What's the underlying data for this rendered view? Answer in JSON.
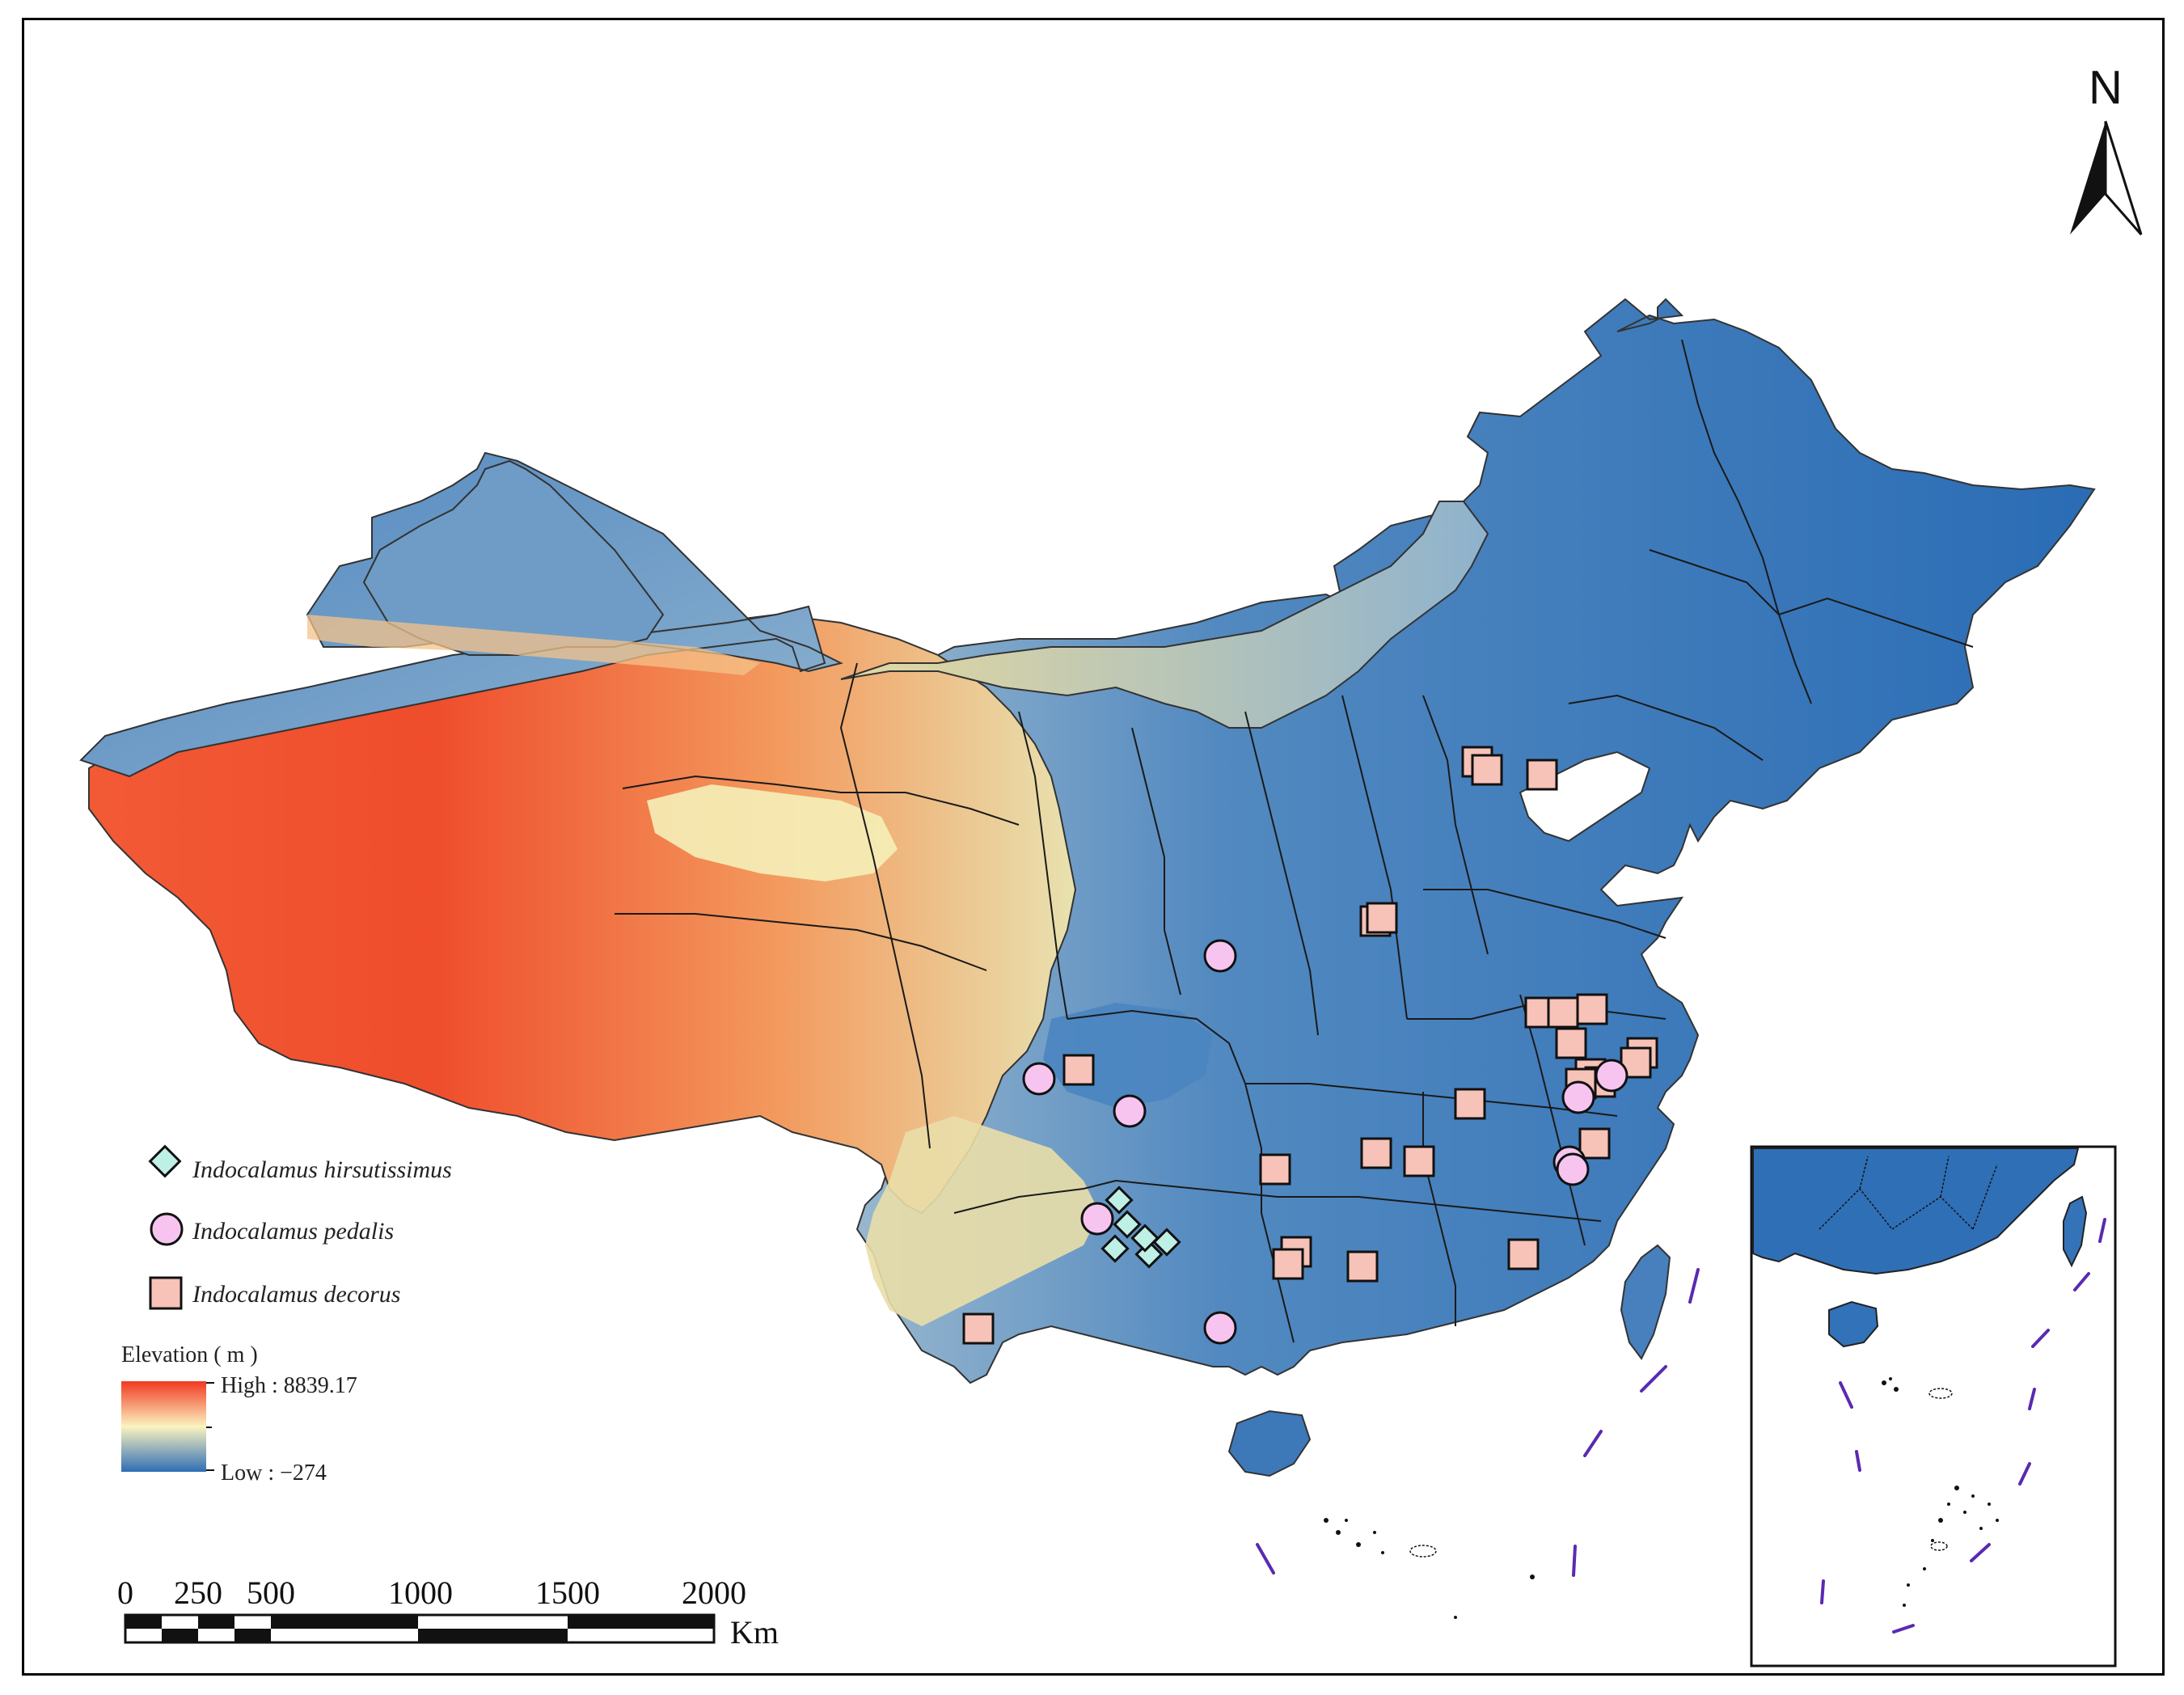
{
  "north_arrow": {
    "label": "N"
  },
  "legend": {
    "species": [
      {
        "name": "Indocalamus hirsutissimus",
        "symbol": "diamond-icon",
        "color": "#bff0e6"
      },
      {
        "name": "Indocalamus pedalis",
        "symbol": "circle-icon",
        "color": "#f7c4f0"
      },
      {
        "name": "Indocalamus decorus",
        "symbol": "square-icon",
        "color": "#f7c2b8"
      }
    ],
    "elevation": {
      "title": "Elevation ( m )",
      "high_label": "High : 8839.17",
      "low_label": "Low : −274",
      "high_color": "#f03a22",
      "mid_color": "#fbf3c0",
      "low_color": "#2f6db4"
    }
  },
  "scale_bar": {
    "ticks": [
      "0",
      "250",
      "500",
      "1000",
      "1500",
      "2000"
    ],
    "unit": "Km"
  },
  "colors": {
    "water_land_low": "#2c6fb6",
    "border": "#222222",
    "nine_dash": "#5a2ab0"
  }
}
